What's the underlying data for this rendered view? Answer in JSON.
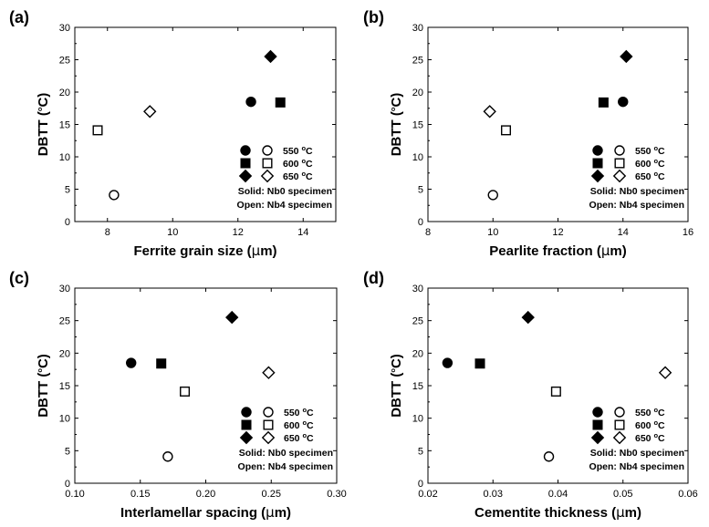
{
  "chart_data": [
    {
      "panel_label": "(a)",
      "type": "scatter",
      "xlabel": "Ferrite grain size (μm)",
      "ylabel": "DBTT (°C)",
      "xlim": [
        7,
        15
      ],
      "ylim": [
        0,
        30
      ],
      "xticks": [
        8,
        10,
        12,
        14
      ],
      "yticks": [
        0,
        5,
        10,
        15,
        20,
        25,
        30
      ],
      "series": [
        {
          "name": "550 °C Nb0",
          "marker": "circle",
          "filled": true,
          "x": 12.4,
          "y": 18.5
        },
        {
          "name": "600 °C Nb0",
          "marker": "square",
          "filled": true,
          "x": 13.3,
          "y": 18.4
        },
        {
          "name": "650 °C Nb0",
          "marker": "diamond",
          "filled": true,
          "x": 13.0,
          "y": 25.5
        },
        {
          "name": "550 °C Nb4",
          "marker": "circle",
          "filled": false,
          "x": 8.2,
          "y": 4.1
        },
        {
          "name": "600 °C Nb4",
          "marker": "square",
          "filled": false,
          "x": 7.7,
          "y": 14.1
        },
        {
          "name": "650 °C Nb4",
          "marker": "diamond",
          "filled": false,
          "x": 9.3,
          "y": 17.0
        }
      ]
    },
    {
      "panel_label": "(b)",
      "type": "scatter",
      "xlabel": "Pearlite fraction (μm)",
      "ylabel": "DBTT (°C)",
      "xlim": [
        8,
        16
      ],
      "ylim": [
        0,
        30
      ],
      "xticks": [
        8,
        10,
        12,
        14,
        16
      ],
      "yticks": [
        0,
        5,
        10,
        15,
        20,
        25,
        30
      ],
      "series": [
        {
          "name": "550 °C Nb0",
          "marker": "circle",
          "filled": true,
          "x": 14.0,
          "y": 18.5
        },
        {
          "name": "600 °C Nb0",
          "marker": "square",
          "filled": true,
          "x": 13.4,
          "y": 18.4
        },
        {
          "name": "650 °C Nb0",
          "marker": "diamond",
          "filled": true,
          "x": 14.1,
          "y": 25.5
        },
        {
          "name": "550 °C Nb4",
          "marker": "circle",
          "filled": false,
          "x": 10.0,
          "y": 4.1
        },
        {
          "name": "600 °C Nb4",
          "marker": "square",
          "filled": false,
          "x": 10.4,
          "y": 14.1
        },
        {
          "name": "650 °C Nb4",
          "marker": "diamond",
          "filled": false,
          "x": 9.9,
          "y": 17.0
        }
      ]
    },
    {
      "panel_label": "(c)",
      "type": "scatter",
      "xlabel": "Interlamellar spacing (μm)",
      "ylabel": "DBTT (°C)",
      "xlim": [
        0.1,
        0.3
      ],
      "ylim": [
        0,
        30
      ],
      "xticks": [
        0.1,
        0.15,
        0.2,
        0.25,
        0.3
      ],
      "yticks": [
        0,
        5,
        10,
        15,
        20,
        25,
        30
      ],
      "series": [
        {
          "name": "550 °C Nb0",
          "marker": "circle",
          "filled": true,
          "x": 0.143,
          "y": 18.5
        },
        {
          "name": "600 °C Nb0",
          "marker": "square",
          "filled": true,
          "x": 0.166,
          "y": 18.4
        },
        {
          "name": "650 °C Nb0",
          "marker": "diamond",
          "filled": true,
          "x": 0.22,
          "y": 25.5
        },
        {
          "name": "550 °C Nb4",
          "marker": "circle",
          "filled": false,
          "x": 0.171,
          "y": 4.1
        },
        {
          "name": "600 °C Nb4",
          "marker": "square",
          "filled": false,
          "x": 0.184,
          "y": 14.1
        },
        {
          "name": "650 °C Nb4",
          "marker": "diamond",
          "filled": false,
          "x": 0.248,
          "y": 17.0
        }
      ]
    },
    {
      "panel_label": "(d)",
      "type": "scatter",
      "xlabel": "Cementite thickness (μm)",
      "ylabel": "DBTT (°C)",
      "xlim": [
        0.02,
        0.06
      ],
      "ylim": [
        0,
        30
      ],
      "xticks": [
        0.02,
        0.03,
        0.04,
        0.05,
        0.06
      ],
      "yticks": [
        0,
        5,
        10,
        15,
        20,
        25,
        30
      ],
      "series": [
        {
          "name": "550 °C Nb0",
          "marker": "circle",
          "filled": true,
          "x": 0.023,
          "y": 18.5
        },
        {
          "name": "600 °C Nb0",
          "marker": "square",
          "filled": true,
          "x": 0.028,
          "y": 18.4
        },
        {
          "name": "650 °C Nb0",
          "marker": "diamond",
          "filled": true,
          "x": 0.0354,
          "y": 25.5
        },
        {
          "name": "550 °C Nb4",
          "marker": "circle",
          "filled": false,
          "x": 0.0386,
          "y": 4.1
        },
        {
          "name": "600 °C Nb4",
          "marker": "square",
          "filled": false,
          "x": 0.0397,
          "y": 14.1
        },
        {
          "name": "650 °C Nb4",
          "marker": "diamond",
          "filled": false,
          "x": 0.0565,
          "y": 17.0
        }
      ]
    }
  ],
  "legend": {
    "placement": "bottom-right",
    "rows": [
      {
        "marker": "circle",
        "label": "550 °C"
      },
      {
        "marker": "square",
        "label": "600 °C"
      },
      {
        "marker": "diamond",
        "label": "650 °C"
      }
    ],
    "notes": [
      "Solid: Nb0 specimen",
      "Open: Nb4 specimen"
    ]
  }
}
